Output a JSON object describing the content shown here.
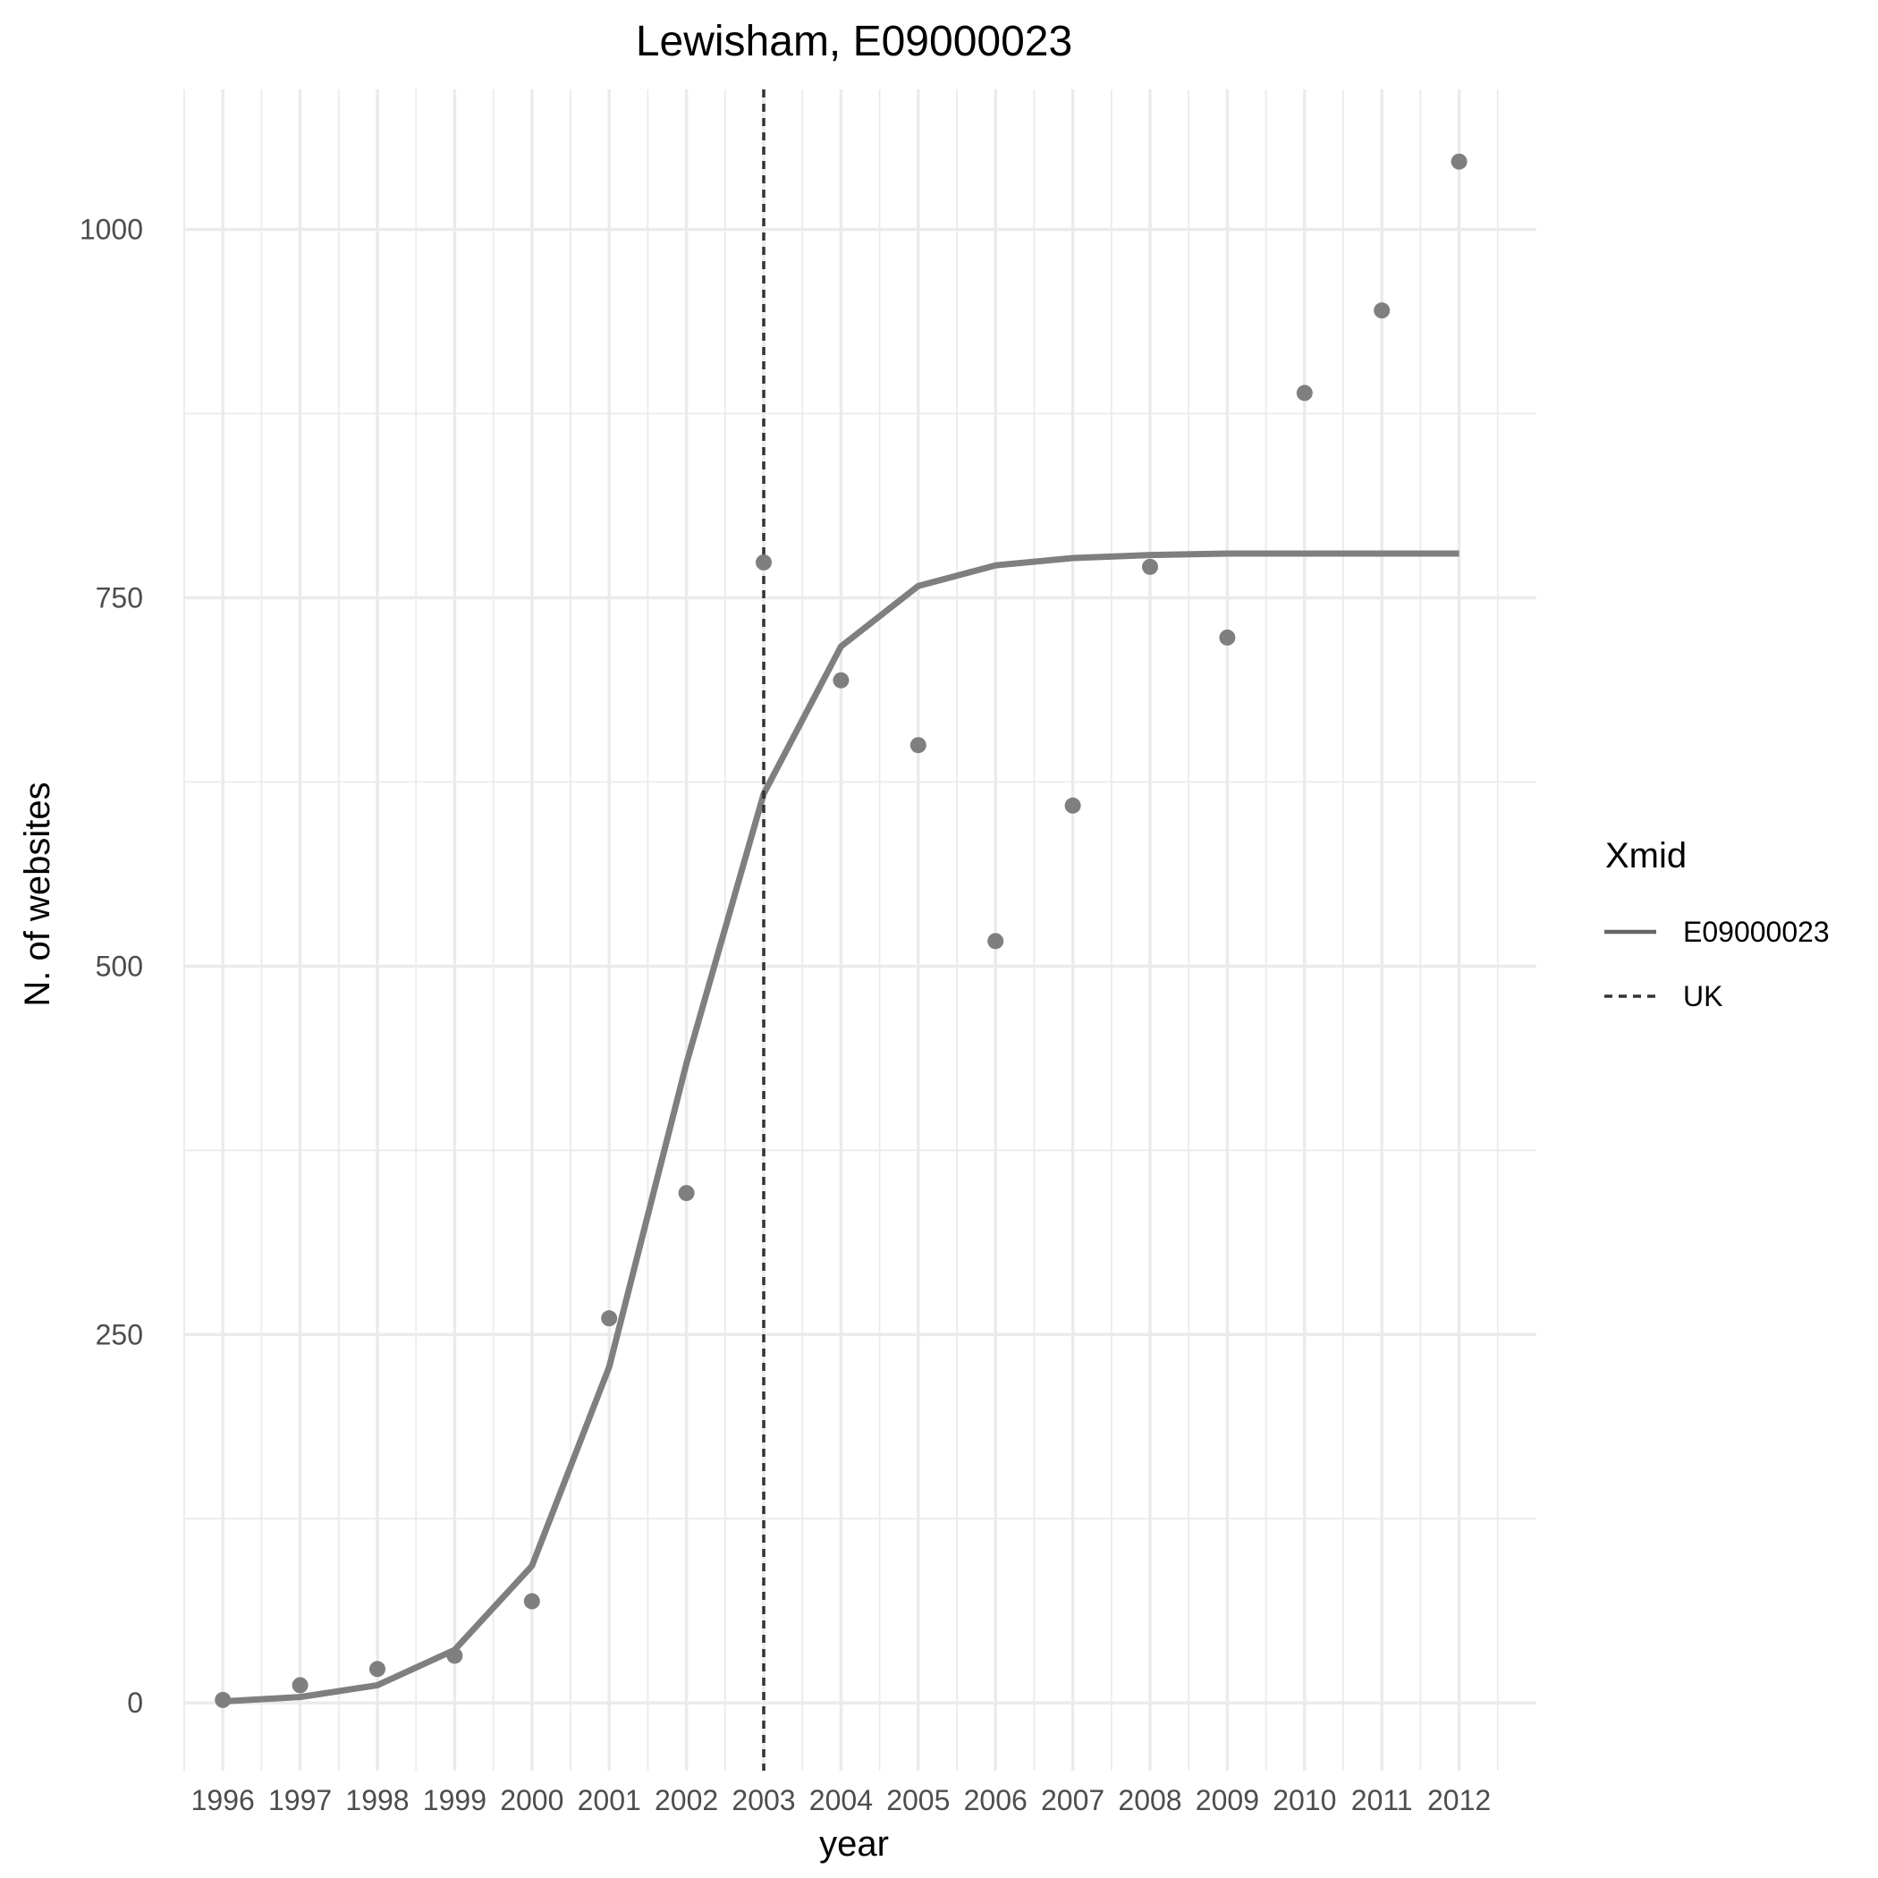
{
  "chart_data": {
    "type": "line",
    "title": "Lewisham, E09000023",
    "xlabel": "year",
    "ylabel": "N. of websites",
    "x": [
      1996,
      1997,
      1998,
      1999,
      2000,
      2001,
      2002,
      2003,
      2004,
      2005,
      2006,
      2007,
      2008,
      2009,
      2010,
      2011,
      2012
    ],
    "x_tick_labels": [
      "1996",
      "1997",
      "1998",
      "1999",
      "2000",
      "2001",
      "2002",
      "2003",
      "2004",
      "2005",
      "2006",
      "2007",
      "2008",
      "2009",
      "2010",
      "2011",
      "2012"
    ],
    "y_ticks": [
      0,
      250,
      500,
      750,
      1000
    ],
    "y_tick_labels": [
      "0",
      "250",
      "500",
      "750",
      "1000"
    ],
    "xlim": [
      1995.5,
      2013.0
    ],
    "ylim": [
      -46,
      1095
    ],
    "points": [
      2,
      12,
      23,
      32,
      69,
      261,
      346,
      774,
      694,
      650,
      517,
      609,
      771,
      723,
      889,
      945,
      1046
    ],
    "series": [
      {
        "name": "E09000023",
        "linetype": "solid",
        "values": [
          1,
          4,
          12,
          36,
          93,
          228,
          434,
          617,
          717,
          758,
          772,
          777,
          779,
          780,
          780,
          780,
          780
        ]
      }
    ],
    "vline": {
      "name": "UK",
      "x": 2003,
      "linetype": "dashed",
      "color": "#333333"
    },
    "legend": {
      "title": "Xmid",
      "position": "right",
      "entries": [
        {
          "label": "E09000023",
          "linetype": "solid"
        },
        {
          "label": "UK",
          "linetype": "dashed"
        }
      ]
    },
    "colors": {
      "series": "#7f7f7f",
      "points": "#7f7f7f",
      "vline": "#333333",
      "grid": "#ebebeb",
      "tick_text": "#4d4d4d"
    },
    "grid": true
  }
}
